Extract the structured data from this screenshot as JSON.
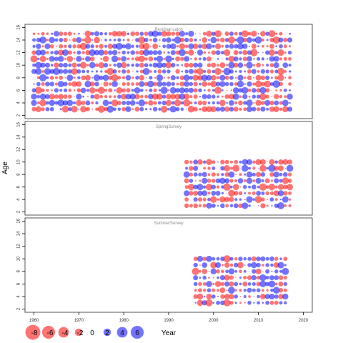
{
  "chart_data": {
    "type": "scatter",
    "ylabel": "Age",
    "xlabel": "Year",
    "xlim": [
      1958,
      2022
    ],
    "x_ticks": [
      1960,
      1970,
      1980,
      1990,
      2000,
      2010,
      2020
    ],
    "y_ticks": [
      2,
      4,
      6,
      8,
      10,
      12,
      14,
      16
    ],
    "colors": {
      "positive": "#0000ff",
      "negative": "#ff0000",
      "alpha": 0.55,
      "panel_border": "#555555",
      "tick_text": "#333333"
    },
    "legend": {
      "placement": "bottom-left",
      "values": [
        -8,
        -6,
        -4,
        -2,
        0,
        2,
        4,
        6
      ],
      "labels": [
        "-8",
        "-6",
        "-4",
        "-2",
        "0",
        "2",
        "4",
        "6"
      ]
    },
    "panels": [
      {
        "title": "Residual catch",
        "ylim": [
          1.5,
          16.5
        ],
        "years": [
          1960,
          2017
        ],
        "ages": [
          3,
          15
        ]
      },
      {
        "title": "SpringSurvey",
        "ylim": [
          1.5,
          16.5
        ],
        "years": [
          1994,
          2017
        ],
        "ages": [
          3,
          10
        ]
      },
      {
        "title": "SummerSurvey",
        "ylim": [
          1.5,
          16.5
        ],
        "years": [
          1996,
          2016
        ],
        "ages": [
          3,
          10
        ]
      }
    ]
  }
}
